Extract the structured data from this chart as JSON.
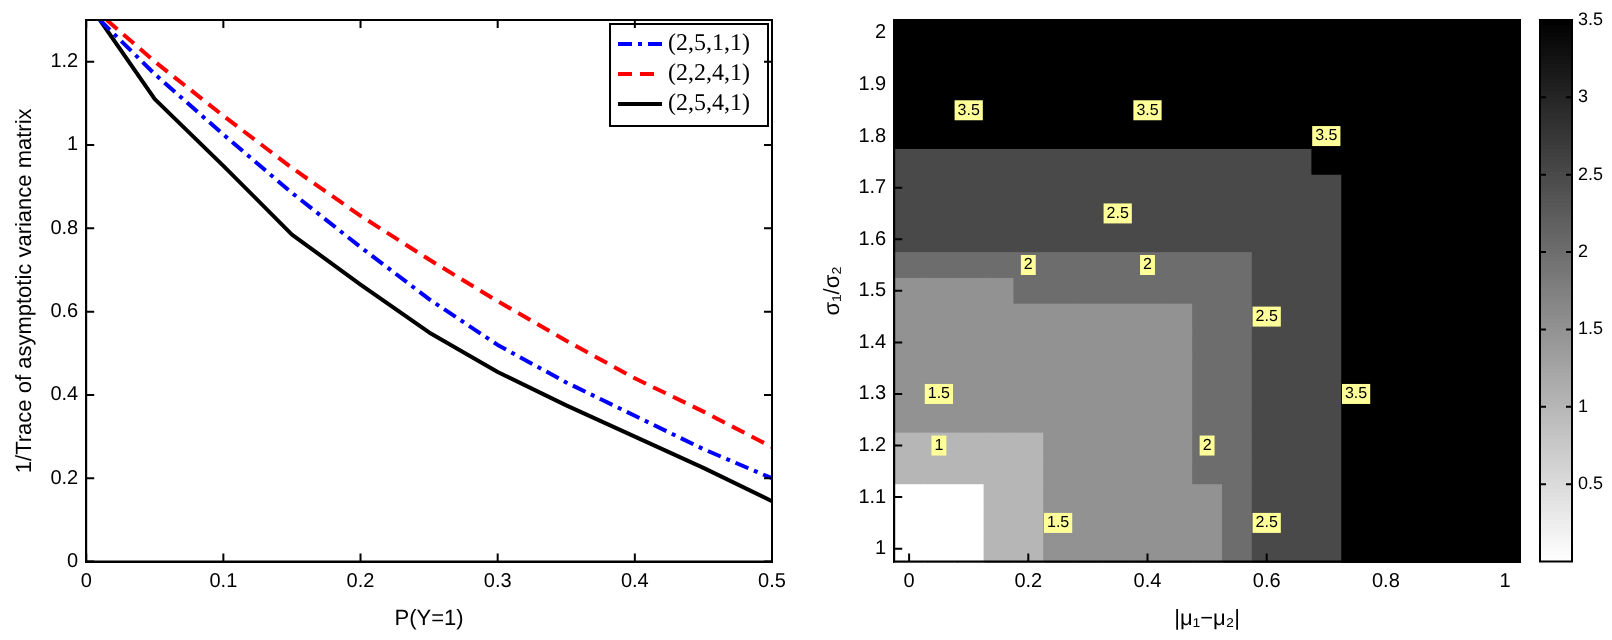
{
  "chart_data": [
    {
      "type": "line",
      "xlabel": "P(Y=1)",
      "ylabel": "1/Trace of asymptotic variance matrix",
      "xlim": [
        0,
        0.5
      ],
      "xticks": [
        0,
        0.1,
        0.2,
        0.3,
        0.4,
        0.5
      ],
      "ylim": [
        0,
        1.3
      ],
      "yticks": [
        0,
        0.2,
        0.4,
        0.6,
        0.8,
        1,
        1.2
      ],
      "legend": "top right",
      "x": [
        0.01,
        0.05,
        0.1,
        0.15,
        0.2,
        0.25,
        0.3,
        0.35,
        0.4,
        0.45,
        0.5
      ],
      "series": [
        {
          "name": "(2,5,1,1)",
          "color": "#0000ff",
          "line_style": "dashdot",
          "values": [
            1.3,
            1.17,
            1.025,
            0.885,
            0.755,
            0.63,
            0.52,
            0.43,
            0.35,
            0.27,
            0.2
          ]
        },
        {
          "name": "(2,2,4,1)",
          "color": "#ff0000",
          "line_style": "dashed",
          "x": [
            0.015,
            0.05,
            0.1,
            0.15,
            0.2,
            0.25,
            0.3,
            0.35,
            0.4,
            0.45,
            0.5
          ],
          "values": [
            1.3,
            1.2,
            1.07,
            0.945,
            0.83,
            0.725,
            0.625,
            0.53,
            0.44,
            0.36,
            0.275
          ]
        },
        {
          "name": "(2,5,4,1)",
          "color": "#000000",
          "line_style": "solid",
          "values": [
            1.3,
            1.11,
            0.95,
            0.785,
            0.665,
            0.55,
            0.455,
            0.375,
            0.3,
            0.225,
            0.145
          ]
        }
      ]
    },
    {
      "type": "heatmap",
      "xlabel": "|μ₁−μ₂|",
      "ylabel": "σ₁/σ₂",
      "clim": [
        0,
        3.5
      ],
      "cticks": [
        0.5,
        1,
        1.5,
        2,
        2.5,
        3,
        3.5
      ],
      "categories": [
        "0",
        null,
        null,
        null,
        "0.2",
        null,
        null,
        null,
        "0.4",
        null,
        null,
        null,
        "0.6",
        null,
        null,
        null,
        "0.8",
        null,
        null,
        null,
        "1"
      ],
      "y_categories": [
        "2",
        null,
        "1.9",
        null,
        "1.8",
        null,
        "1.7",
        null,
        "1.6",
        null,
        "1.5",
        null,
        "1.4",
        null,
        "1.3",
        null,
        "1.2",
        null,
        "1.1",
        null,
        "1"
      ],
      "cells": [
        [
          3.5,
          3.5,
          3.5,
          3.5,
          3.5,
          3.5,
          3.5,
          3.5,
          3.5,
          3.5,
          3.5,
          3.5,
          3.5,
          3.5,
          3.5,
          3.5,
          3.5,
          3.5,
          3.5,
          3.5,
          3.5
        ],
        [
          3.5,
          3.5,
          3.5,
          3.5,
          3.5,
          3.5,
          3.5,
          3.5,
          3.5,
          3.5,
          3.5,
          3.5,
          3.5,
          3.5,
          3.5,
          3.5,
          3.5,
          3.5,
          3.5,
          3.5,
          3.5
        ],
        [
          3.5,
          3.5,
          3.5,
          3.5,
          3.5,
          3.5,
          3.5,
          3.5,
          3.5,
          3.5,
          3.5,
          3.5,
          3.5,
          3.5,
          3.5,
          3.5,
          3.5,
          3.5,
          3.5,
          3.5,
          3.5
        ],
        [
          3.5,
          3.5,
          3.5,
          3.5,
          3.5,
          3.5,
          3.5,
          3.5,
          3.5,
          3.5,
          3.5,
          3.5,
          3.5,
          3.5,
          3.5,
          3.5,
          3.5,
          3.5,
          3.5,
          3.5,
          3.5
        ],
        [
          3.5,
          3.5,
          3.5,
          3.5,
          3.5,
          3.5,
          3.5,
          3.5,
          3.5,
          3.5,
          3.5,
          3.5,
          3.5,
          3.5,
          3.5,
          3.5,
          3.5,
          3.5,
          3.5,
          3.5,
          3.5
        ],
        [
          2.5,
          2.5,
          2.5,
          2.5,
          2.5,
          2.5,
          2.5,
          2.5,
          2.5,
          2.5,
          2.5,
          2.5,
          2.5,
          2.5,
          3.5,
          3.5,
          3.5,
          3.5,
          3.5,
          3.5,
          3.5
        ],
        [
          2.5,
          2.5,
          2.5,
          2.5,
          2.5,
          2.5,
          2.5,
          2.5,
          2.5,
          2.5,
          2.5,
          2.5,
          2.5,
          2.5,
          2.5,
          3.5,
          3.5,
          3.5,
          3.5,
          3.5,
          3.5
        ],
        [
          2.5,
          2.5,
          2.5,
          2.5,
          2.5,
          2.5,
          2.5,
          2.5,
          2.5,
          2.5,
          2.5,
          2.5,
          2.5,
          2.5,
          2.5,
          3.5,
          3.5,
          3.5,
          3.5,
          3.5,
          3.5
        ],
        [
          2.5,
          2.5,
          2.5,
          2.5,
          2.5,
          2.5,
          2.5,
          2.5,
          2.5,
          2.5,
          2.5,
          2.5,
          2.5,
          2.5,
          2.5,
          3.5,
          3.5,
          3.5,
          3.5,
          3.5,
          3.5
        ],
        [
          2,
          2,
          2,
          2,
          2,
          2,
          2,
          2,
          2,
          2,
          2,
          2,
          2.5,
          2.5,
          2.5,
          3.5,
          3.5,
          3.5,
          3.5,
          3.5,
          3.5
        ],
        [
          1.5,
          1.5,
          1.5,
          1.5,
          2,
          2,
          2,
          2,
          2,
          2,
          2,
          2,
          2.5,
          2.5,
          2.5,
          3.5,
          3.5,
          3.5,
          3.5,
          3.5,
          3.5
        ],
        [
          1.5,
          1.5,
          1.5,
          1.5,
          1.5,
          1.5,
          1.5,
          1.5,
          1.5,
          1.5,
          2,
          2,
          2.5,
          2.5,
          2.5,
          3.5,
          3.5,
          3.5,
          3.5,
          3.5,
          3.5
        ],
        [
          1.5,
          1.5,
          1.5,
          1.5,
          1.5,
          1.5,
          1.5,
          1.5,
          1.5,
          1.5,
          2,
          2,
          2.5,
          2.5,
          2.5,
          3.5,
          3.5,
          3.5,
          3.5,
          3.5,
          3.5
        ],
        [
          1.5,
          1.5,
          1.5,
          1.5,
          1.5,
          1.5,
          1.5,
          1.5,
          1.5,
          1.5,
          2,
          2,
          2.5,
          2.5,
          2.5,
          3.5,
          3.5,
          3.5,
          3.5,
          3.5,
          3.5
        ],
        [
          1.5,
          1.5,
          1.5,
          1.5,
          1.5,
          1.5,
          1.5,
          1.5,
          1.5,
          1.5,
          2,
          2,
          2.5,
          2.5,
          2.5,
          3.5,
          3.5,
          3.5,
          3.5,
          3.5,
          3.5
        ],
        [
          1.5,
          1.5,
          1.5,
          1.5,
          1.5,
          1.5,
          1.5,
          1.5,
          1.5,
          1.5,
          2,
          2,
          2.5,
          2.5,
          2.5,
          3.5,
          3.5,
          3.5,
          3.5,
          3.5,
          3.5
        ],
        [
          1,
          1,
          1,
          1,
          1,
          1.5,
          1.5,
          1.5,
          1.5,
          1.5,
          2,
          2,
          2.5,
          2.5,
          2.5,
          3.5,
          3.5,
          3.5,
          3.5,
          3.5,
          3.5
        ],
        [
          1,
          1,
          1,
          1,
          1,
          1.5,
          1.5,
          1.5,
          1.5,
          1.5,
          2,
          2,
          2.5,
          2.5,
          2.5,
          3.5,
          3.5,
          3.5,
          3.5,
          3.5,
          3.5
        ],
        [
          0,
          0,
          0,
          1,
          1,
          1.5,
          1.5,
          1.5,
          1.5,
          1.5,
          1.5,
          2,
          2.5,
          2.5,
          2.5,
          3.5,
          3.5,
          3.5,
          3.5,
          3.5,
          3.5
        ],
        [
          0,
          0,
          0,
          1,
          1,
          1.5,
          1.5,
          1.5,
          1.5,
          1.5,
          1.5,
          2,
          2.5,
          2.5,
          2.5,
          3.5,
          3.5,
          3.5,
          3.5,
          3.5,
          3.5
        ],
        [
          0,
          0,
          0,
          1,
          1,
          1.5,
          1.5,
          1.5,
          1.5,
          1.5,
          1.5,
          2,
          2.5,
          2.5,
          2.5,
          3.5,
          3.5,
          3.5,
          3.5,
          3.5,
          3.5
        ]
      ],
      "cell_labels": [
        [
          null,
          null,
          null,
          null,
          null,
          null,
          null,
          null,
          null,
          null,
          null,
          null,
          null,
          null,
          null,
          null,
          null,
          null,
          null,
          null,
          null
        ],
        [
          null,
          null,
          null,
          null,
          null,
          null,
          null,
          null,
          null,
          null,
          null,
          null,
          null,
          null,
          null,
          null,
          null,
          null,
          null,
          null,
          null
        ],
        [
          null,
          null,
          null,
          null,
          null,
          null,
          null,
          null,
          null,
          null,
          null,
          null,
          null,
          null,
          null,
          null,
          null,
          null,
          null,
          null,
          null
        ],
        [
          null,
          null,
          "3.5",
          null,
          null,
          null,
          null,
          null,
          "3.5",
          null,
          null,
          null,
          null,
          null,
          null,
          null,
          null,
          null,
          null,
          null,
          null
        ],
        [
          null,
          null,
          null,
          null,
          null,
          null,
          null,
          null,
          null,
          null,
          null,
          null,
          null,
          null,
          "3.5",
          null,
          null,
          null,
          null,
          null,
          null
        ],
        [
          null,
          null,
          null,
          null,
          null,
          null,
          null,
          null,
          null,
          null,
          null,
          null,
          null,
          null,
          null,
          null,
          null,
          null,
          null,
          null,
          null
        ],
        [
          null,
          null,
          null,
          null,
          null,
          null,
          null,
          null,
          null,
          null,
          null,
          null,
          null,
          null,
          null,
          null,
          null,
          null,
          null,
          null,
          null
        ],
        [
          null,
          null,
          null,
          null,
          null,
          null,
          null,
          "2.5",
          null,
          null,
          null,
          null,
          null,
          null,
          null,
          null,
          null,
          null,
          null,
          null,
          null
        ],
        [
          null,
          null,
          null,
          null,
          null,
          null,
          null,
          null,
          null,
          null,
          null,
          null,
          null,
          null,
          null,
          null,
          null,
          null,
          null,
          null,
          null
        ],
        [
          null,
          null,
          null,
          null,
          "2",
          null,
          null,
          null,
          "2",
          null,
          null,
          null,
          null,
          null,
          null,
          null,
          null,
          null,
          null,
          null,
          null
        ],
        [
          null,
          null,
          null,
          null,
          null,
          null,
          null,
          null,
          null,
          null,
          null,
          null,
          null,
          null,
          null,
          null,
          null,
          null,
          null,
          null,
          null
        ],
        [
          null,
          null,
          null,
          null,
          null,
          null,
          null,
          null,
          null,
          null,
          null,
          null,
          "2.5",
          null,
          null,
          null,
          null,
          null,
          null,
          null,
          null
        ],
        [
          null,
          null,
          null,
          null,
          null,
          null,
          null,
          null,
          null,
          null,
          null,
          null,
          null,
          null,
          null,
          null,
          null,
          null,
          null,
          null,
          null
        ],
        [
          null,
          null,
          null,
          null,
          null,
          null,
          null,
          null,
          null,
          null,
          null,
          null,
          null,
          null,
          null,
          null,
          null,
          null,
          null,
          null,
          null
        ],
        [
          null,
          "1.5",
          null,
          null,
          null,
          null,
          null,
          null,
          null,
          null,
          null,
          null,
          null,
          null,
          null,
          "3.5",
          null,
          null,
          null,
          null,
          null
        ],
        [
          null,
          null,
          null,
          null,
          null,
          null,
          null,
          null,
          null,
          null,
          null,
          null,
          null,
          null,
          null,
          null,
          null,
          null,
          null,
          null,
          null
        ],
        [
          null,
          "1",
          null,
          null,
          null,
          null,
          null,
          null,
          null,
          null,
          "2",
          null,
          null,
          null,
          null,
          null,
          null,
          null,
          null,
          null,
          null
        ],
        [
          null,
          null,
          null,
          null,
          null,
          null,
          null,
          null,
          null,
          null,
          null,
          null,
          null,
          null,
          null,
          null,
          null,
          null,
          null,
          null,
          null
        ],
        [
          null,
          null,
          null,
          null,
          null,
          null,
          null,
          null,
          null,
          null,
          null,
          null,
          null,
          null,
          null,
          null,
          null,
          null,
          null,
          null,
          null
        ],
        [
          null,
          null,
          null,
          null,
          null,
          "1.5",
          null,
          null,
          null,
          null,
          null,
          null,
          "2.5",
          null,
          null,
          null,
          null,
          null,
          null,
          null,
          null
        ],
        [
          null,
          null,
          null,
          null,
          null,
          null,
          null,
          null,
          null,
          null,
          null,
          null,
          null,
          null,
          null,
          null,
          null,
          null,
          null,
          null,
          null
        ]
      ]
    }
  ]
}
